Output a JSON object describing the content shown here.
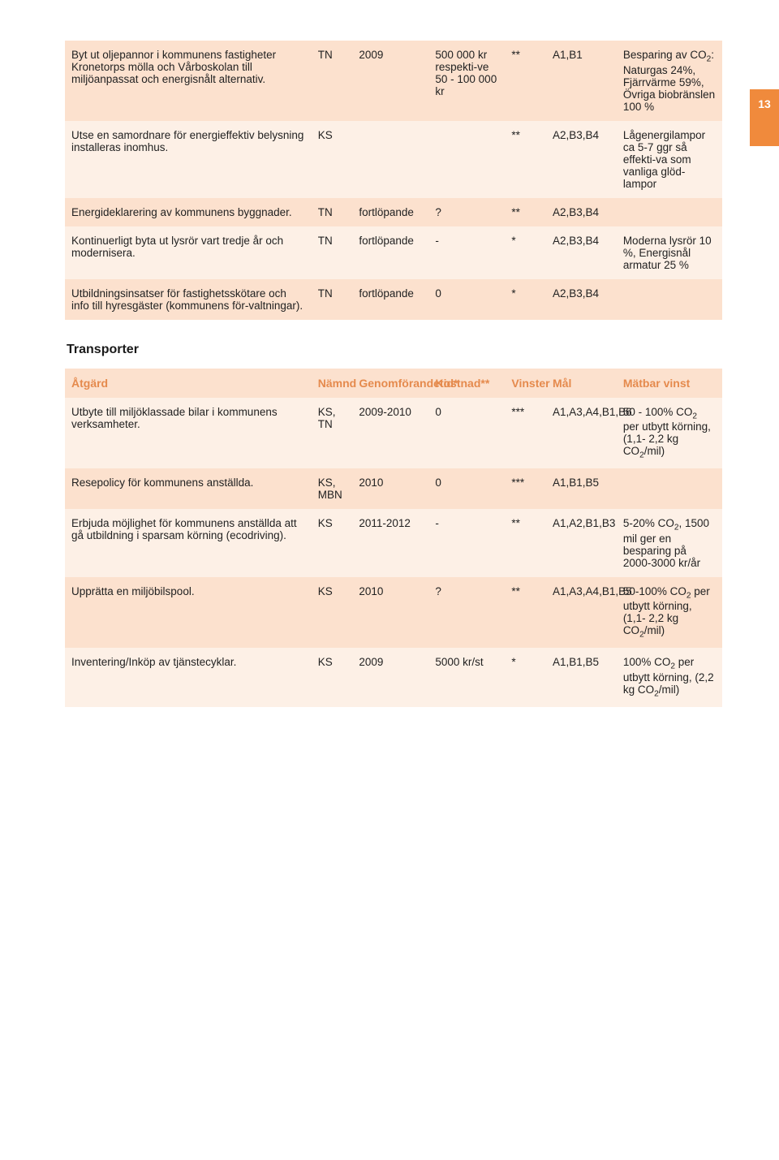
{
  "page": {
    "number": "13"
  },
  "colors": {
    "row_dark": "#fce1ce",
    "row_light": "#fdf0e6",
    "header_text": "#e58a4d",
    "tab_bg": "#f08a3c",
    "body_text": "#222222"
  },
  "typography": {
    "body_fontsize_pt": 10,
    "header_fontsize_pt": 10.5,
    "section_title_fontsize_pt": 12,
    "section_title_weight": "bold",
    "font_family": "Helvetica"
  },
  "table1": {
    "columns_widths_pct": [
      42,
      7,
      13,
      13,
      7,
      12,
      18
    ],
    "rows": [
      {
        "shade": "dark",
        "atgard": "Byt ut oljepannor i kommunens fastigheter Kronetorps mölla och Vårboskolan till miljöanpassat och energisnålt alternativ.",
        "namnd": "TN",
        "tid": "2009",
        "kost": "500 000 kr respekti-ve 50 - 100 000 kr",
        "vinst": "**",
        "mal": "A1,B1",
        "mvinst_html": "Besparing av CO<sub>2</sub>: Naturgas 24%, Fjärrvärme 59%, Övriga biobränslen 100 %"
      },
      {
        "shade": "light",
        "atgard": "Utse en samordnare för energieffektiv belysning installeras inomhus.",
        "namnd": "KS",
        "tid": "",
        "kost": "",
        "vinst": "**",
        "mal": "A2,B3,B4",
        "mvinst_html": "Lågenergilampor ca 5-7 ggr så effekti-va som vanliga glöd-lampor"
      },
      {
        "shade": "dark",
        "atgard": "Energideklarering av kommunens byggnader.",
        "namnd": "TN",
        "tid": "fortlöpande",
        "kost": "?",
        "vinst": "**",
        "mal": "A2,B3,B4",
        "mvinst_html": ""
      },
      {
        "shade": "light",
        "atgard": "Kontinuerligt byta ut lysrör vart tredje år och modernisera.",
        "namnd": "TN",
        "tid": "fortlöpande",
        "kost": "-",
        "vinst": "*",
        "mal": "A2,B3,B4",
        "mvinst_html": "Moderna lysrör 10 %, Energisnål armatur 25 %"
      },
      {
        "shade": "dark",
        "atgard": "Utbildningsinsatser för fastighetsskötare och info till hyresgäster (kommunens för-valtningar).",
        "namnd": "TN",
        "tid": "fortlöpande",
        "kost": "0",
        "vinst": "*",
        "mal": "A2,B3,B4",
        "mvinst_html": ""
      }
    ]
  },
  "section2_title": "Transporter",
  "table2_headers": {
    "atgard": "Åtgärd",
    "namnd": "Nämnd",
    "tid": "Genomförandetid*",
    "kost": "Kostnad**",
    "vinst": "Vinster",
    "mal": "Mål",
    "mvinst": "Mätbar vinst"
  },
  "table2": {
    "columns_widths_pct": [
      42,
      7,
      13,
      13,
      7,
      12,
      18
    ],
    "rows": [
      {
        "shade": "light",
        "atgard": "Utbyte till miljöklassade bilar i kommunens verksamheter.",
        "namnd": "KS, TN",
        "tid": "2009-2010",
        "kost": "0",
        "vinst": "***",
        "mal": "A1,A3,A4,B1,B6",
        "mvinst_html": "50 - 100% CO<sub>2</sub> per utbytt körning, (1,1- 2,2 kg CO<sub>2</sub>/mil)"
      },
      {
        "shade": "dark",
        "atgard": "Resepolicy för kommunens anställda.",
        "namnd": "KS, MBN",
        "tid": "2010",
        "kost": "0",
        "vinst": "***",
        "mal": "A1,B1,B5",
        "mvinst_html": ""
      },
      {
        "shade": "light",
        "atgard": "Erbjuda möjlighet för kommunens anställda att gå utbildning i sparsam körning (ecodriving).",
        "namnd": "KS",
        "tid": "2011-2012",
        "kost": "-",
        "vinst": "**",
        "mal": "A1,A2,B1,B3",
        "mvinst_html": "5-20% CO<sub>2</sub>, 1500 mil ger en besparing på 2000-3000 kr/år"
      },
      {
        "shade": "dark",
        "atgard": "Upprätta en miljöbilspool.",
        "namnd": "KS",
        "tid": "2010",
        "kost": "?",
        "vinst": "**",
        "mal": "A1,A3,A4,B1,B5",
        "mvinst_html": "50-100% CO<sub>2</sub> per utbytt körning, (1,1- 2,2 kg CO<sub>2</sub>/mil)"
      },
      {
        "shade": "light",
        "atgard": "Inventering/Inköp av tjänstecyklar.",
        "namnd": "KS",
        "tid": "2009",
        "kost": "5000 kr/st",
        "vinst": "*",
        "mal": "A1,B1,B5",
        "mvinst_html": "100% CO<sub>2</sub> per utbytt körning, (2,2 kg CO<sub>2</sub>/mil)"
      }
    ]
  }
}
